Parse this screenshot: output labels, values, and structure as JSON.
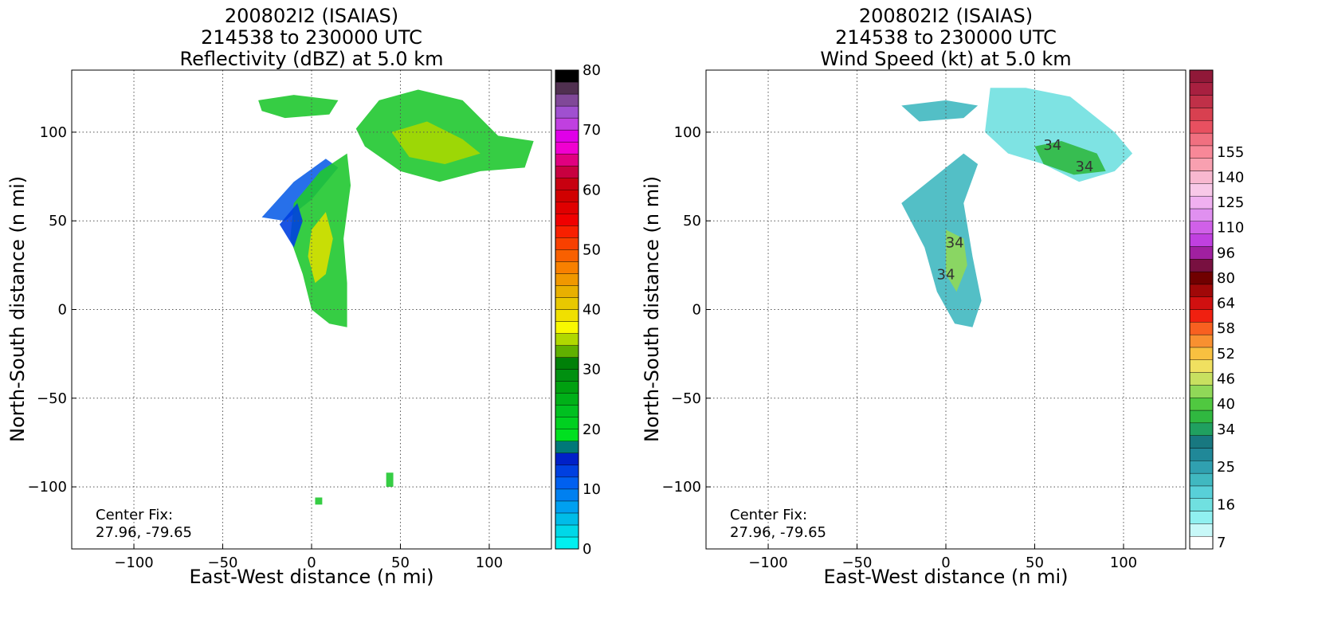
{
  "chart_data": [
    {
      "type": "heatmap",
      "title": "200802I2 (ISAIAS)",
      "subtitle": "214538 to 230000 UTC",
      "field_title": "Reflectivity (dBZ) at 5.0 km",
      "xlabel": "East-West distance (n mi)",
      "ylabel": "North-South distance (n mi)",
      "xlim": [
        -135,
        135
      ],
      "ylim": [
        -135,
        135
      ],
      "xticks": [
        "−100",
        "−50",
        "0",
        "50",
        "100"
      ],
      "xtick_values": [
        -100,
        -50,
        0,
        50,
        100
      ],
      "yticks": [
        "−100",
        "−50",
        "0",
        "50",
        "100"
      ],
      "ytick_values": [
        -100,
        -50,
        0,
        50,
        100
      ],
      "grid": true,
      "center_fix_label": "Center Fix:",
      "center_fix_value": "27.96, -79.65",
      "colorbar": {
        "min": 0,
        "max": 80,
        "tick_labels": [
          "0",
          "10",
          "20",
          "30",
          "40",
          "50",
          "60",
          "70",
          "80"
        ],
        "tick_values": [
          0,
          10,
          20,
          30,
          40,
          50,
          60,
          70,
          80
        ],
        "colors": [
          "#00f0f0",
          "#00d8e8",
          "#00bce8",
          "#00a0f0",
          "#0080f0",
          "#0060f0",
          "#0040e0",
          "#0020c8",
          "#007878",
          "#00e020",
          "#00d020",
          "#00c020",
          "#00b018",
          "#00a010",
          "#009010",
          "#008008",
          "#60b000",
          "#b0d800",
          "#f8f800",
          "#f0e000",
          "#e8c800",
          "#e8b000",
          "#f09800",
          "#f88000",
          "#f86000",
          "#f84000",
          "#f82000",
          "#f00000",
          "#e00000",
          "#d00000",
          "#c80010",
          "#c80040",
          "#e00080",
          "#f000d0",
          "#e000e8",
          "#c040e0",
          "#a050d0",
          "#804898",
          "#503050",
          "#000000"
        ]
      }
    },
    {
      "type": "heatmap",
      "title": "200802I2 (ISAIAS)",
      "subtitle": "214538 to 230000 UTC",
      "field_title": "Wind Speed (kt) at 5.0 km",
      "xlabel": "East-West distance (n mi)",
      "ylabel": "North-South distance (n mi)",
      "xlim": [
        -135,
        135
      ],
      "ylim": [
        -135,
        135
      ],
      "xticks": [
        "−100",
        "−50",
        "0",
        "50",
        "100"
      ],
      "xtick_values": [
        -100,
        -50,
        0,
        50,
        100
      ],
      "yticks": [
        "−100",
        "−50",
        "0",
        "50",
        "100"
      ],
      "ytick_values": [
        -100,
        -50,
        0,
        50,
        100
      ],
      "grid": true,
      "contour_labels": [
        "34",
        "34",
        "34",
        "34"
      ],
      "center_fix_label": "Center Fix:",
      "center_fix_value": "27.96, -79.65",
      "colorbar": {
        "tick_labels": [
          "7",
          "16",
          "25",
          "34",
          "40",
          "46",
          "52",
          "58",
          "64",
          "80",
          "96",
          "110",
          "125",
          "140",
          "155"
        ],
        "tick_bins": [
          0,
          3,
          6,
          9,
          11,
          13,
          15,
          17,
          19,
          21,
          23,
          25,
          27,
          29,
          31
        ],
        "colors": [
          "#ffffff",
          "#c8f8f8",
          "#90f0f0",
          "#70e0e0",
          "#58d0d8",
          "#40b8c0",
          "#30a0b0",
          "#208898",
          "#187880",
          "#20a060",
          "#30b840",
          "#50c840",
          "#90d858",
          "#c8e060",
          "#f0e060",
          "#f8c040",
          "#f89030",
          "#f86020",
          "#f02010",
          "#d01010",
          "#a00808",
          "#700000",
          "#781040",
          "#a020a0",
          "#c040e0",
          "#d060e8",
          "#e090f0",
          "#f0b0f0",
          "#f8c8e8",
          "#f8b8d0",
          "#f8a0b0",
          "#f88898",
          "#f07080",
          "#e85060",
          "#d84050",
          "#c03048",
          "#a82040",
          "#901838"
        ]
      }
    }
  ]
}
